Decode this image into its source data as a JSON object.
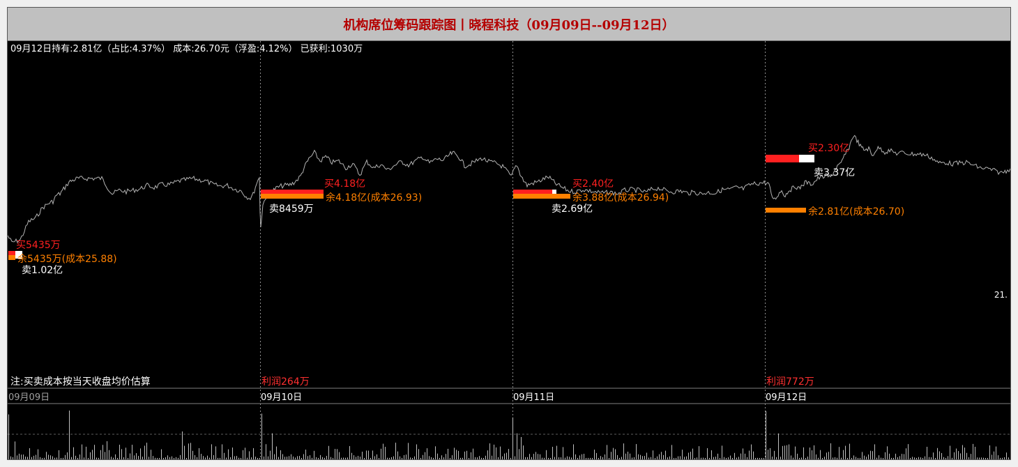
{
  "title": "机构席位筹码跟踪图丨晓程科技（09月09日--09月12日）",
  "summary": "09月12日持有:2.81亿（占比:4.37%） 成本:26.70元（浮盈:4.12%） 已获利:1030万",
  "note": "注:买卖成本按当天收盘均价估算",
  "right_price_label": "21.",
  "colors": {
    "background": "#000000",
    "price_line": "#b4b4b4",
    "buy": "#ff2020",
    "sell": "#ffffff",
    "remain": "#ff8000",
    "date_text": "#ffffff",
    "profit": "#ff3030",
    "volume": "#c0c0c0"
  },
  "chart_data": {
    "type": "line",
    "days": [
      "09月09日",
      "09月10日",
      "09月11日",
      "09月12日"
    ],
    "day_events": [
      {
        "date": "09月09日",
        "buy": "买5435万",
        "remain": "余5435万(成本25.88)",
        "sell": "卖1.02亿",
        "profit": ""
      },
      {
        "date": "09月10日",
        "buy": "买4.18亿",
        "remain": "余4.18亿(成本26.93)",
        "sell": "卖8459万",
        "profit": "利润264万"
      },
      {
        "date": "09月11日",
        "buy": "买2.40亿",
        "remain": "余3.88亿(成本26.94)",
        "sell": "卖2.69亿",
        "profit": ""
      },
      {
        "date": "09月12日",
        "buy": "买2.30亿",
        "remain": "余2.81亿(成本26.70)",
        "sell": "卖3.37亿",
        "profit": "利润772万"
      }
    ],
    "price_anchors": [
      [
        0,
        82
      ],
      [
        6,
        92
      ],
      [
        12,
        90
      ],
      [
        18,
        88
      ],
      [
        22,
        80
      ],
      [
        30,
        62
      ],
      [
        40,
        57
      ],
      [
        50,
        42
      ],
      [
        60,
        35
      ],
      [
        65,
        33
      ],
      [
        70,
        24
      ],
      [
        75,
        22
      ],
      [
        82,
        13
      ],
      [
        88,
        5
      ],
      [
        95,
        2
      ],
      [
        100,
        0
      ],
      [
        112,
        0
      ],
      [
        125,
        0
      ],
      [
        135,
        0
      ],
      [
        145,
        15
      ],
      [
        150,
        22
      ],
      [
        160,
        17
      ],
      [
        170,
        19
      ],
      [
        180,
        17
      ],
      [
        190,
        15
      ],
      [
        200,
        10
      ],
      [
        210,
        13
      ],
      [
        220,
        9
      ],
      [
        232,
        9
      ],
      [
        245,
        4
      ],
      [
        255,
        2
      ],
      [
        265,
        0
      ],
      [
        275,
        2
      ],
      [
        285,
        4
      ],
      [
        295,
        9
      ],
      [
        305,
        11
      ],
      [
        315,
        10
      ],
      [
        325,
        15
      ],
      [
        335,
        18
      ],
      [
        342,
        26
      ],
      [
        348,
        28
      ],
      [
        352,
        23
      ],
      [
        357,
        7
      ],
      [
        361,
        -1
      ],
      [
        362,
        48
      ],
      [
        363,
        68
      ],
      [
        366,
        38
      ],
      [
        370,
        27
      ],
      [
        375,
        22
      ],
      [
        380,
        18
      ],
      [
        385,
        14
      ],
      [
        392,
        11
      ],
      [
        398,
        10
      ],
      [
        405,
        9
      ],
      [
        412,
        5
      ],
      [
        420,
        -3
      ],
      [
        425,
        -15
      ],
      [
        432,
        -28
      ],
      [
        440,
        -37
      ],
      [
        448,
        -25
      ],
      [
        456,
        -31
      ],
      [
        465,
        -23
      ],
      [
        475,
        -25
      ],
      [
        485,
        -15
      ],
      [
        495,
        -21
      ],
      [
        505,
        -5
      ],
      [
        515,
        -24
      ],
      [
        525,
        -15
      ],
      [
        535,
        -20
      ],
      [
        545,
        -12
      ],
      [
        555,
        -19
      ],
      [
        565,
        -24
      ],
      [
        575,
        -19
      ],
      [
        585,
        -25
      ],
      [
        595,
        -31
      ],
      [
        605,
        -22
      ],
      [
        615,
        -28
      ],
      [
        625,
        -26
      ],
      [
        635,
        -35
      ],
      [
        640,
        -36
      ],
      [
        650,
        -28
      ],
      [
        655,
        -18
      ],
      [
        662,
        -20
      ],
      [
        670,
        -24
      ],
      [
        680,
        -29
      ],
      [
        690,
        -24
      ],
      [
        700,
        -22
      ],
      [
        710,
        -17
      ],
      [
        718,
        -8
      ],
      [
        722,
        -2
      ],
      [
        727,
        -14
      ],
      [
        730,
        -20
      ],
      [
        735,
        -7
      ],
      [
        740,
        3
      ],
      [
        745,
        10
      ],
      [
        752,
        7
      ],
      [
        760,
        5
      ],
      [
        770,
        0
      ],
      [
        776,
        -2
      ],
      [
        785,
        7
      ],
      [
        795,
        13
      ],
      [
        805,
        18
      ],
      [
        815,
        19
      ],
      [
        825,
        16
      ],
      [
        835,
        18
      ],
      [
        845,
        20
      ],
      [
        855,
        21
      ],
      [
        865,
        20
      ],
      [
        875,
        22
      ],
      [
        885,
        17
      ],
      [
        895,
        16
      ],
      [
        905,
        17
      ],
      [
        915,
        20
      ],
      [
        925,
        15
      ],
      [
        935,
        14
      ],
      [
        945,
        18
      ],
      [
        955,
        19
      ],
      [
        965,
        18
      ],
      [
        975,
        21
      ],
      [
        985,
        20
      ],
      [
        995,
        22
      ],
      [
        1005,
        20
      ],
      [
        1015,
        21
      ],
      [
        1025,
        16
      ],
      [
        1035,
        16
      ],
      [
        1045,
        13
      ],
      [
        1055,
        15
      ],
      [
        1065,
        9
      ],
      [
        1075,
        7
      ],
      [
        1085,
        6
      ],
      [
        1092,
        8
      ],
      [
        1095,
        24
      ],
      [
        1100,
        30
      ],
      [
        1105,
        23
      ],
      [
        1110,
        17
      ],
      [
        1115,
        25
      ],
      [
        1120,
        17
      ],
      [
        1125,
        15
      ],
      [
        1130,
        11
      ],
      [
        1135,
        15
      ],
      [
        1140,
        9
      ],
      [
        1145,
        5
      ],
      [
        1150,
        8
      ],
      [
        1155,
        7
      ],
      [
        1162,
        0
      ],
      [
        1168,
        -2
      ],
      [
        1175,
        -4
      ],
      [
        1180,
        -1
      ],
      [
        1185,
        -10
      ],
      [
        1190,
        -18
      ],
      [
        1195,
        -20
      ],
      [
        1200,
        -33
      ],
      [
        1205,
        -40
      ],
      [
        1210,
        -54
      ],
      [
        1213,
        -62
      ],
      [
        1218,
        -55
      ],
      [
        1223,
        -46
      ],
      [
        1228,
        -41
      ],
      [
        1235,
        -43
      ],
      [
        1240,
        -32
      ],
      [
        1245,
        -41
      ],
      [
        1250,
        -44
      ],
      [
        1258,
        -38
      ],
      [
        1265,
        -40
      ],
      [
        1275,
        -36
      ],
      [
        1285,
        -37
      ],
      [
        1295,
        -35
      ],
      [
        1305,
        -35
      ],
      [
        1315,
        -34
      ],
      [
        1325,
        -30
      ],
      [
        1335,
        -22
      ],
      [
        1345,
        -23
      ],
      [
        1355,
        -21
      ],
      [
        1365,
        -22
      ],
      [
        1375,
        -23
      ],
      [
        1385,
        -19
      ],
      [
        1395,
        -15
      ],
      [
        1405,
        -14
      ],
      [
        1415,
        -11
      ],
      [
        1425,
        -8
      ],
      [
        1432,
        -11
      ],
      [
        1438,
        -14
      ]
    ],
    "grid": "vertical dashed lines at day boundaries",
    "legend": "none"
  }
}
